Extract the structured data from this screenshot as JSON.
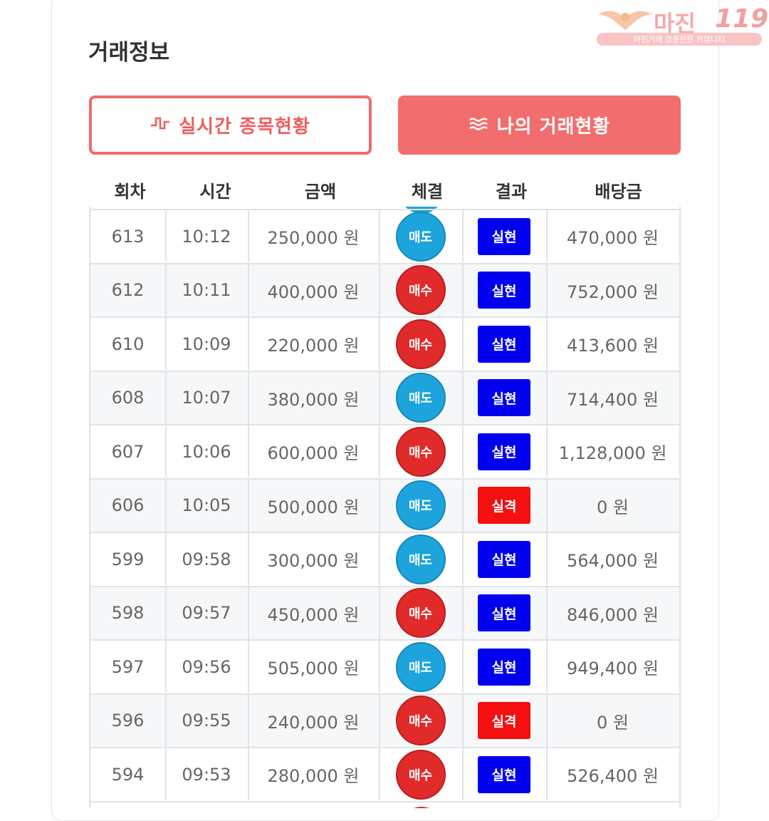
{
  "header": {
    "title": "거래정보"
  },
  "watermark": {
    "main": "마진",
    "number": "119",
    "subtitle": "마진거래 검증전문 커뮤니티"
  },
  "buttons": {
    "realtime": {
      "label": "실시간 종목현황",
      "icon": "pulse-icon"
    },
    "mytrades": {
      "label": "나의 거래현황",
      "icon": "waves-icon"
    }
  },
  "table": {
    "columns": [
      "회차",
      "시간",
      "금액",
      "체결",
      "결과",
      "배당금"
    ],
    "rows": [
      {
        "round": "613",
        "time": "10:12",
        "amount": "250,000 원",
        "trade": "매도",
        "type": "sell",
        "result": "실현",
        "status": "win",
        "payout": "470,000 원"
      },
      {
        "round": "612",
        "time": "10:11",
        "amount": "400,000 원",
        "trade": "매수",
        "type": "buy",
        "result": "실현",
        "status": "win",
        "payout": "752,000 원"
      },
      {
        "round": "610",
        "time": "10:09",
        "amount": "220,000 원",
        "trade": "매수",
        "type": "buy",
        "result": "실현",
        "status": "win",
        "payout": "413,600 원"
      },
      {
        "round": "608",
        "time": "10:07",
        "amount": "380,000 원",
        "trade": "매도",
        "type": "sell",
        "result": "실현",
        "status": "win",
        "payout": "714,400 원"
      },
      {
        "round": "607",
        "time": "10:06",
        "amount": "600,000 원",
        "trade": "매수",
        "type": "buy",
        "result": "실현",
        "status": "win",
        "payout": "1,128,000 원"
      },
      {
        "round": "606",
        "time": "10:05",
        "amount": "500,000 원",
        "trade": "매도",
        "type": "sell",
        "result": "실격",
        "status": "lose",
        "payout": "0 원"
      },
      {
        "round": "599",
        "time": "09:58",
        "amount": "300,000 원",
        "trade": "매도",
        "type": "sell",
        "result": "실현",
        "status": "win",
        "payout": "564,000 원"
      },
      {
        "round": "598",
        "time": "09:57",
        "amount": "450,000 원",
        "trade": "매수",
        "type": "buy",
        "result": "실현",
        "status": "win",
        "payout": "846,000 원"
      },
      {
        "round": "597",
        "time": "09:56",
        "amount": "505,000 원",
        "trade": "매도",
        "type": "sell",
        "result": "실현",
        "status": "win",
        "payout": "949,400 원"
      },
      {
        "round": "596",
        "time": "09:55",
        "amount": "240,000 원",
        "trade": "매수",
        "type": "buy",
        "result": "실격",
        "status": "lose",
        "payout": "0 원"
      },
      {
        "round": "594",
        "time": "09:53",
        "amount": "280,000 원",
        "trade": "매수",
        "type": "buy",
        "result": "실현",
        "status": "win",
        "payout": "526,400 원"
      }
    ]
  },
  "colors": {
    "accent": "#f26d6d",
    "sell": "#1ea4dd",
    "buy": "#e12a2a",
    "win": "#0000ee",
    "lose": "#f41010"
  }
}
